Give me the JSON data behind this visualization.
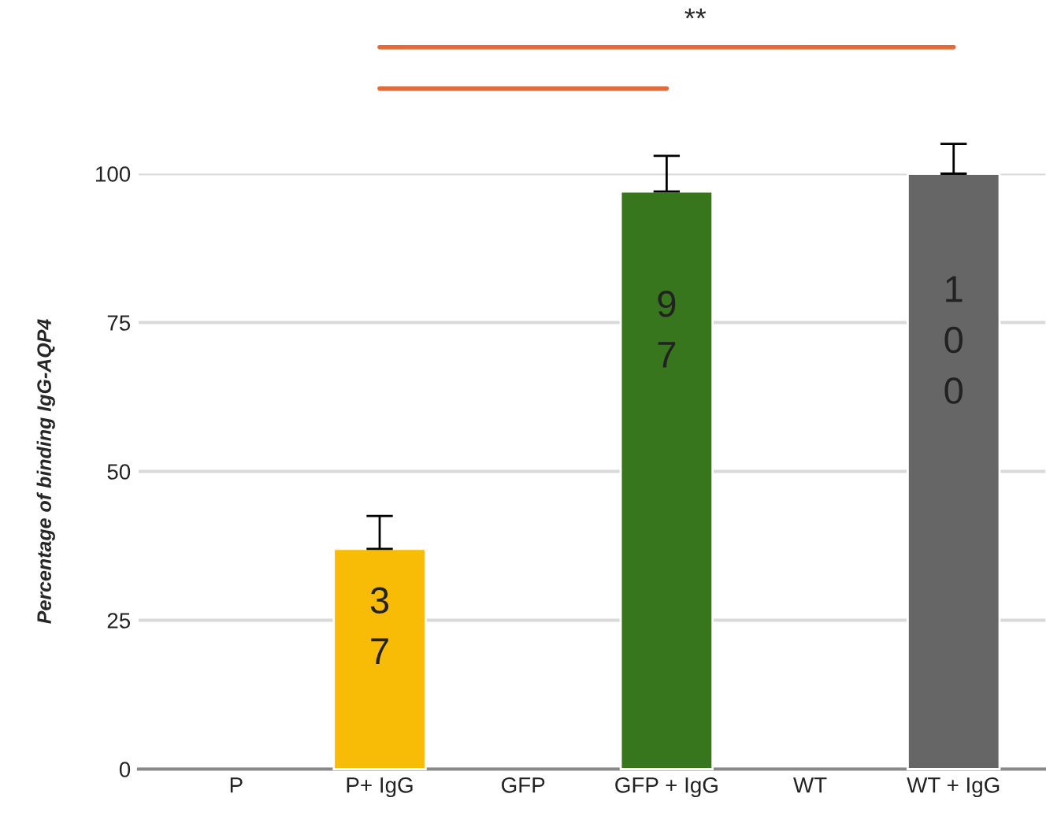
{
  "chart_data": {
    "type": "bar",
    "ylabel": "Percentage of binding IgG-AQP4",
    "categories": [
      "P",
      "P+ IgG",
      "GFP",
      "GFP + IgG",
      "WT",
      "WT + IgG"
    ],
    "values": [
      null,
      37,
      null,
      97,
      null,
      100
    ],
    "colors": [
      "#f9bc06",
      "#f9bc06",
      "#38761d",
      "#38761d",
      "#666666",
      "#666666"
    ],
    "errors": [
      null,
      5.5,
      null,
      6,
      null,
      5
    ],
    "ylim": [
      0,
      100
    ],
    "yticks": [
      0,
      25,
      50,
      75,
      100
    ],
    "grid": "y",
    "data_labels": true,
    "annotations": [
      "**"
    ]
  }
}
